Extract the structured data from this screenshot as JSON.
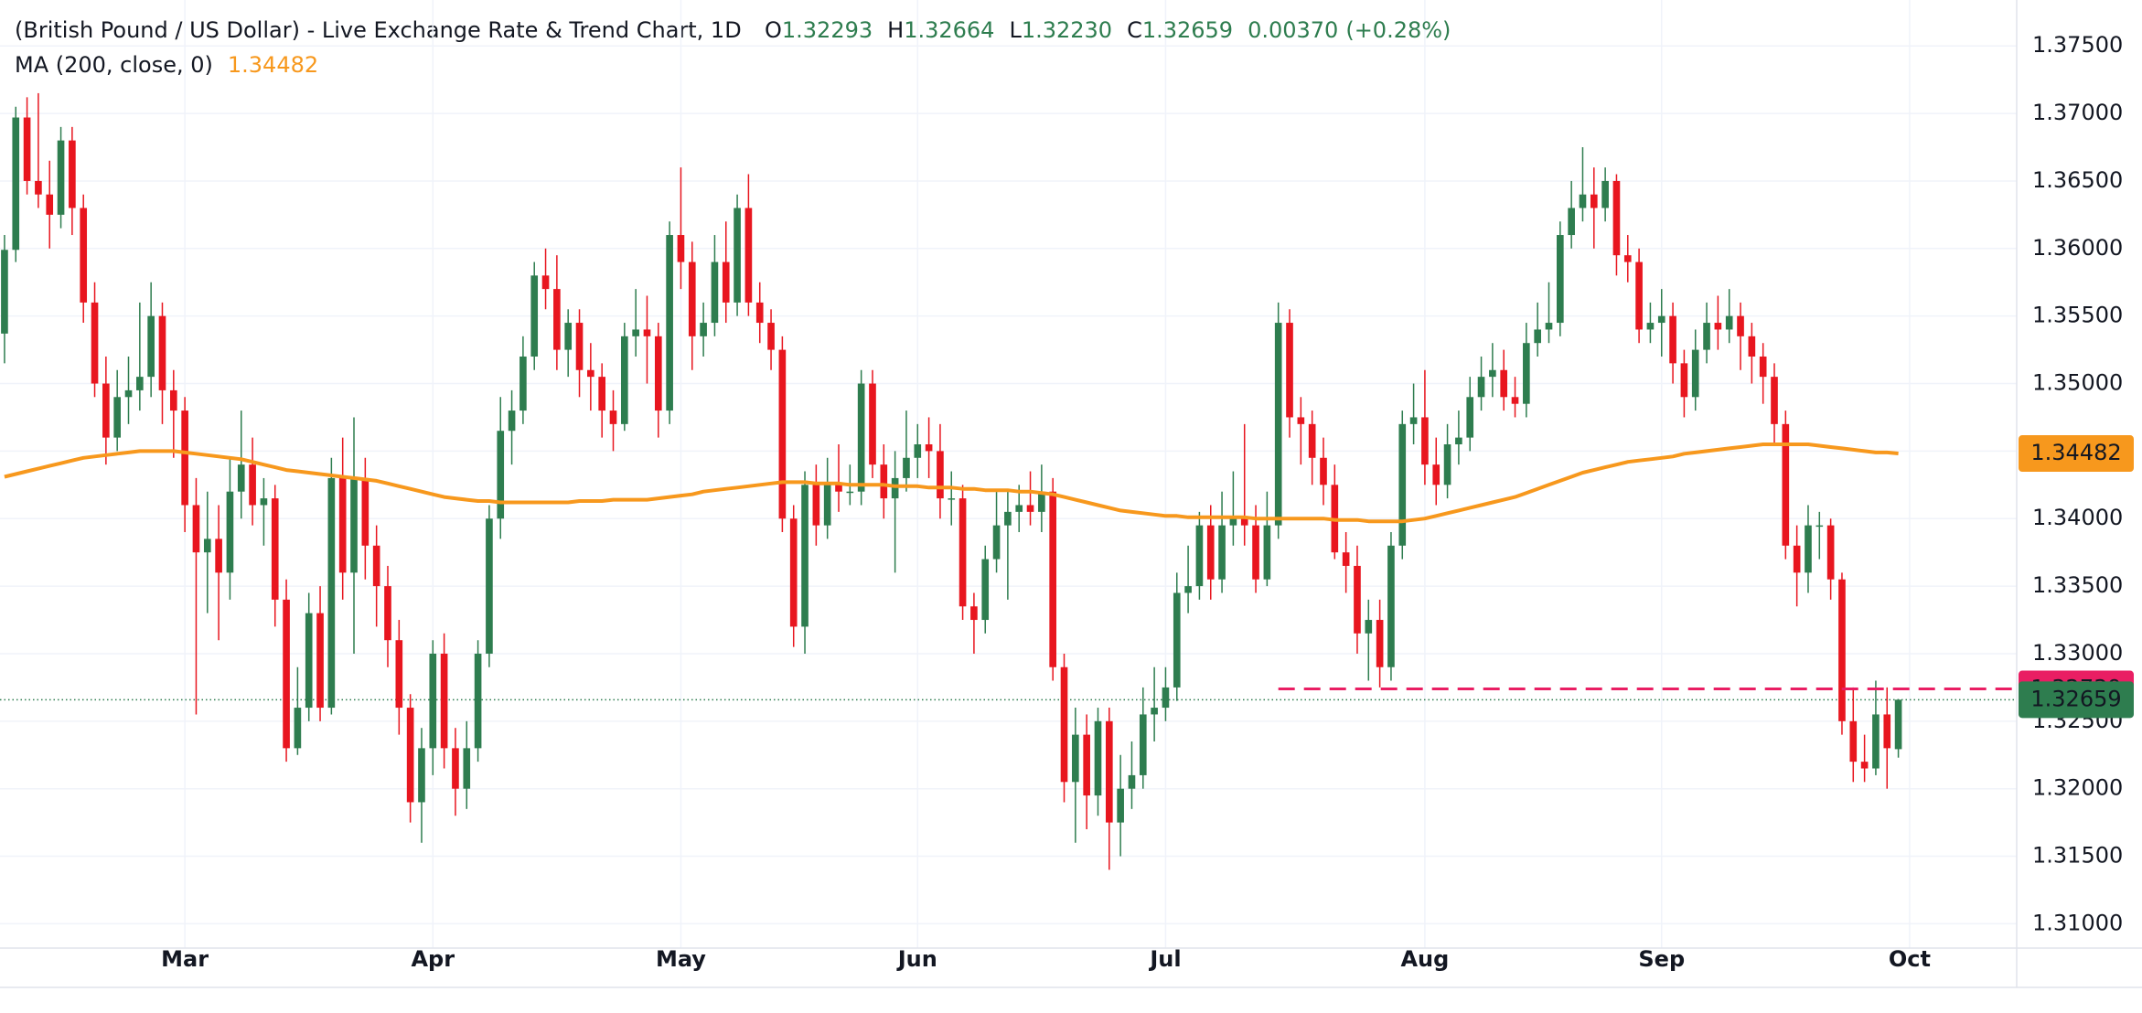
{
  "chart_data": {
    "type": "candlestick",
    "title": "(British Pound / US Dollar) - Live Exchange Rate & Trend Chart, 1D",
    "ohlc": [
      {
        "key": "O",
        "value": "1.32293"
      },
      {
        "key": "H",
        "value": "1.32664"
      },
      {
        "key": "L",
        "value": "1.32230"
      },
      {
        "key": "C",
        "value": "1.32659"
      }
    ],
    "change": "0.00370",
    "change_pct": "(+0.28%)",
    "up_color": "#2e7d4f",
    "down_color": "#e8161f",
    "ylim": [
      1.3082,
      1.3784
    ],
    "yticks": [
      {
        "value": 1.31,
        "label": "1.31000"
      },
      {
        "value": 1.315,
        "label": "1.31500"
      },
      {
        "value": 1.32,
        "label": "1.32000"
      },
      {
        "value": 1.325,
        "label": "1.32500"
      },
      {
        "value": 1.33,
        "label": "1.33000"
      },
      {
        "value": 1.335,
        "label": "1.33500"
      },
      {
        "value": 1.34,
        "label": "1.34000"
      },
      {
        "value": 1.345,
        "label": "1.34500"
      },
      {
        "value": 1.35,
        "label": "1.35000"
      },
      {
        "value": 1.355,
        "label": "1.35500"
      },
      {
        "value": 1.36,
        "label": "1.36000"
      },
      {
        "value": 1.365,
        "label": "1.36500"
      },
      {
        "value": 1.37,
        "label": "1.37000"
      },
      {
        "value": 1.375,
        "label": "1.37500"
      }
    ],
    "xlim": [
      -0.4,
      178.5
    ],
    "xticks": [
      {
        "value": 16,
        "label": "Mar"
      },
      {
        "value": 38,
        "label": "Apr"
      },
      {
        "value": 60,
        "label": "May"
      },
      {
        "value": 81,
        "label": "Jun"
      },
      {
        "value": 103,
        "label": "Jul"
      },
      {
        "value": 126,
        "label": "Aug"
      },
      {
        "value": 147,
        "label": "Sep"
      },
      {
        "value": 169,
        "label": "Oct"
      }
    ],
    "grid": true,
    "candles": [
      [
        1.3537,
        1.361,
        1.3515,
        1.3599
      ],
      [
        1.3599,
        1.3705,
        1.359,
        1.3697
      ],
      [
        1.3697,
        1.3712,
        1.364,
        1.365
      ],
      [
        1.365,
        1.3715,
        1.363,
        1.364
      ],
      [
        1.364,
        1.3665,
        1.36,
        1.3625
      ],
      [
        1.3625,
        1.369,
        1.3615,
        1.368
      ],
      [
        1.368,
        1.369,
        1.361,
        1.363
      ],
      [
        1.363,
        1.364,
        1.3545,
        1.356
      ],
      [
        1.356,
        1.3575,
        1.349,
        1.35
      ],
      [
        1.35,
        1.352,
        1.344,
        1.346
      ],
      [
        1.346,
        1.351,
        1.345,
        1.349
      ],
      [
        1.349,
        1.352,
        1.347,
        1.3495
      ],
      [
        1.3495,
        1.356,
        1.348,
        1.3505
      ],
      [
        1.3505,
        1.3575,
        1.349,
        1.355
      ],
      [
        1.355,
        1.356,
        1.347,
        1.3495
      ],
      [
        1.3495,
        1.351,
        1.3445,
        1.348
      ],
      [
        1.348,
        1.349,
        1.339,
        1.341
      ],
      [
        1.341,
        1.343,
        1.3255,
        1.3375
      ],
      [
        1.3375,
        1.342,
        1.333,
        1.3385
      ],
      [
        1.3385,
        1.341,
        1.331,
        1.336
      ],
      [
        1.336,
        1.3445,
        1.334,
        1.342
      ],
      [
        1.342,
        1.348,
        1.34,
        1.344
      ],
      [
        1.344,
        1.346,
        1.3395,
        1.341
      ],
      [
        1.341,
        1.343,
        1.338,
        1.3415
      ],
      [
        1.3415,
        1.3425,
        1.332,
        1.334
      ],
      [
        1.334,
        1.3355,
        1.322,
        1.323
      ],
      [
        1.323,
        1.329,
        1.3225,
        1.326
      ],
      [
        1.326,
        1.3345,
        1.325,
        1.333
      ],
      [
        1.333,
        1.335,
        1.325,
        1.326
      ],
      [
        1.326,
        1.3445,
        1.3255,
        1.343
      ],
      [
        1.343,
        1.346,
        1.334,
        1.336
      ],
      [
        1.336,
        1.3475,
        1.33,
        1.343
      ],
      [
        1.343,
        1.3445,
        1.3355,
        1.338
      ],
      [
        1.338,
        1.3395,
        1.332,
        1.335
      ],
      [
        1.335,
        1.3365,
        1.329,
        1.331
      ],
      [
        1.331,
        1.3325,
        1.324,
        1.326
      ],
      [
        1.326,
        1.327,
        1.3175,
        1.319
      ],
      [
        1.319,
        1.3245,
        1.316,
        1.323
      ],
      [
        1.323,
        1.331,
        1.321,
        1.33
      ],
      [
        1.33,
        1.3315,
        1.3215,
        1.323
      ],
      [
        1.323,
        1.3245,
        1.318,
        1.32
      ],
      [
        1.32,
        1.325,
        1.3185,
        1.323
      ],
      [
        1.323,
        1.331,
        1.322,
        1.33
      ],
      [
        1.33,
        1.341,
        1.329,
        1.34
      ],
      [
        1.34,
        1.349,
        1.3385,
        1.3465
      ],
      [
        1.3465,
        1.3495,
        1.344,
        1.348
      ],
      [
        1.348,
        1.3535,
        1.347,
        1.352
      ],
      [
        1.352,
        1.359,
        1.351,
        1.358
      ],
      [
        1.358,
        1.36,
        1.3555,
        1.357
      ],
      [
        1.357,
        1.3595,
        1.351,
        1.3525
      ],
      [
        1.3525,
        1.3555,
        1.3505,
        1.3545
      ],
      [
        1.3545,
        1.3555,
        1.349,
        1.351
      ],
      [
        1.351,
        1.353,
        1.348,
        1.3505
      ],
      [
        1.3505,
        1.3515,
        1.346,
        1.348
      ],
      [
        1.348,
        1.3495,
        1.345,
        1.347
      ],
      [
        1.347,
        1.3545,
        1.3465,
        1.3535
      ],
      [
        1.3535,
        1.357,
        1.352,
        1.354
      ],
      [
        1.354,
        1.3565,
        1.35,
        1.3535
      ],
      [
        1.3535,
        1.3545,
        1.346,
        1.348
      ],
      [
        1.348,
        1.362,
        1.347,
        1.361
      ],
      [
        1.361,
        1.366,
        1.357,
        1.359
      ],
      [
        1.359,
        1.3605,
        1.351,
        1.3535
      ],
      [
        1.3535,
        1.356,
        1.352,
        1.3545
      ],
      [
        1.3545,
        1.361,
        1.3535,
        1.359
      ],
      [
        1.359,
        1.362,
        1.3545,
        1.356
      ],
      [
        1.356,
        1.364,
        1.355,
        1.363
      ],
      [
        1.363,
        1.3655,
        1.355,
        1.356
      ],
      [
        1.356,
        1.3575,
        1.353,
        1.3545
      ],
      [
        1.3545,
        1.3555,
        1.351,
        1.3525
      ],
      [
        1.3525,
        1.3535,
        1.339,
        1.34
      ],
      [
        1.34,
        1.341,
        1.3305,
        1.332
      ],
      [
        1.332,
        1.3435,
        1.33,
        1.3425
      ],
      [
        1.3425,
        1.344,
        1.338,
        1.3395
      ],
      [
        1.3395,
        1.3445,
        1.3385,
        1.3425
      ],
      [
        1.3425,
        1.3455,
        1.3405,
        1.342
      ],
      [
        1.342,
        1.344,
        1.341,
        1.342
      ],
      [
        1.342,
        1.351,
        1.341,
        1.35
      ],
      [
        1.35,
        1.351,
        1.343,
        1.344
      ],
      [
        1.344,
        1.3455,
        1.34,
        1.3415
      ],
      [
        1.3415,
        1.345,
        1.336,
        1.343
      ],
      [
        1.343,
        1.348,
        1.342,
        1.3445
      ],
      [
        1.3445,
        1.347,
        1.343,
        1.3455
      ],
      [
        1.3455,
        1.3475,
        1.343,
        1.345
      ],
      [
        1.345,
        1.347,
        1.34,
        1.3415
      ],
      [
        1.3415,
        1.3435,
        1.3395,
        1.3415
      ],
      [
        1.3415,
        1.3425,
        1.3325,
        1.3335
      ],
      [
        1.3335,
        1.3345,
        1.33,
        1.3325
      ],
      [
        1.3325,
        1.338,
        1.3315,
        1.337
      ],
      [
        1.337,
        1.342,
        1.336,
        1.3395
      ],
      [
        1.3395,
        1.342,
        1.334,
        1.3405
      ],
      [
        1.3405,
        1.3425,
        1.339,
        1.341
      ],
      [
        1.341,
        1.3435,
        1.3395,
        1.3405
      ],
      [
        1.3405,
        1.344,
        1.339,
        1.342
      ],
      [
        1.342,
        1.343,
        1.328,
        1.329
      ],
      [
        1.329,
        1.33,
        1.319,
        1.3205
      ],
      [
        1.3205,
        1.326,
        1.316,
        1.324
      ],
      [
        1.324,
        1.3255,
        1.317,
        1.3195
      ],
      [
        1.3195,
        1.326,
        1.318,
        1.325
      ],
      [
        1.325,
        1.326,
        1.314,
        1.3175
      ],
      [
        1.3175,
        1.3225,
        1.315,
        1.32
      ],
      [
        1.32,
        1.3235,
        1.3185,
        1.321
      ],
      [
        1.321,
        1.3275,
        1.32,
        1.3255
      ],
      [
        1.3255,
        1.329,
        1.3235,
        1.326
      ],
      [
        1.326,
        1.329,
        1.325,
        1.3275
      ],
      [
        1.3275,
        1.336,
        1.3265,
        1.3345
      ],
      [
        1.3345,
        1.338,
        1.333,
        1.335
      ],
      [
        1.335,
        1.3405,
        1.334,
        1.3395
      ],
      [
        1.3395,
        1.341,
        1.334,
        1.3355
      ],
      [
        1.3355,
        1.342,
        1.3345,
        1.3395
      ],
      [
        1.3395,
        1.3435,
        1.338,
        1.34
      ],
      [
        1.34,
        1.347,
        1.338,
        1.3395
      ],
      [
        1.3395,
        1.341,
        1.3345,
        1.3355
      ],
      [
        1.3355,
        1.342,
        1.335,
        1.3395
      ],
      [
        1.3395,
        1.356,
        1.3385,
        1.3545
      ],
      [
        1.3545,
        1.3555,
        1.346,
        1.3475
      ],
      [
        1.3475,
        1.349,
        1.344,
        1.347
      ],
      [
        1.347,
        1.348,
        1.3425,
        1.3445
      ],
      [
        1.3445,
        1.346,
        1.341,
        1.3425
      ],
      [
        1.3425,
        1.344,
        1.337,
        1.3375
      ],
      [
        1.3375,
        1.339,
        1.3345,
        1.3365
      ],
      [
        1.3365,
        1.338,
        1.33,
        1.3315
      ],
      [
        1.3315,
        1.334,
        1.328,
        1.3325
      ],
      [
        1.3325,
        1.334,
        1.3275,
        1.329
      ],
      [
        1.329,
        1.339,
        1.328,
        1.338
      ],
      [
        1.338,
        1.348,
        1.337,
        1.347
      ],
      [
        1.347,
        1.35,
        1.3455,
        1.3475
      ],
      [
        1.3475,
        1.351,
        1.3425,
        1.344
      ],
      [
        1.344,
        1.346,
        1.341,
        1.3425
      ],
      [
        1.3425,
        1.347,
        1.3415,
        1.3455
      ],
      [
        1.3455,
        1.348,
        1.344,
        1.346
      ],
      [
        1.346,
        1.3505,
        1.345,
        1.349
      ],
      [
        1.349,
        1.352,
        1.348,
        1.3505
      ],
      [
        1.3505,
        1.353,
        1.349,
        1.351
      ],
      [
        1.351,
        1.3525,
        1.348,
        1.349
      ],
      [
        1.349,
        1.3505,
        1.3475,
        1.3485
      ],
      [
        1.3485,
        1.3545,
        1.3475,
        1.353
      ],
      [
        1.353,
        1.356,
        1.352,
        1.354
      ],
      [
        1.354,
        1.3575,
        1.353,
        1.3545
      ],
      [
        1.3545,
        1.362,
        1.3535,
        1.361
      ],
      [
        1.361,
        1.365,
        1.36,
        1.363
      ],
      [
        1.363,
        1.3675,
        1.362,
        1.364
      ],
      [
        1.364,
        1.366,
        1.36,
        1.363
      ],
      [
        1.363,
        1.366,
        1.362,
        1.365
      ],
      [
        1.365,
        1.3655,
        1.358,
        1.3595
      ],
      [
        1.3595,
        1.361,
        1.3575,
        1.359
      ],
      [
        1.359,
        1.36,
        1.353,
        1.354
      ],
      [
        1.354,
        1.356,
        1.353,
        1.3545
      ],
      [
        1.3545,
        1.357,
        1.352,
        1.355
      ],
      [
        1.355,
        1.356,
        1.35,
        1.3515
      ],
      [
        1.3515,
        1.3525,
        1.3475,
        1.349
      ],
      [
        1.349,
        1.354,
        1.348,
        1.3525
      ],
      [
        1.3525,
        1.356,
        1.3515,
        1.3545
      ],
      [
        1.3545,
        1.3565,
        1.3525,
        1.354
      ],
      [
        1.354,
        1.357,
        1.353,
        1.355
      ],
      [
        1.355,
        1.356,
        1.351,
        1.3535
      ],
      [
        1.3535,
        1.3545,
        1.35,
        1.352
      ],
      [
        1.352,
        1.353,
        1.3485,
        1.3505
      ],
      [
        1.3505,
        1.3515,
        1.3455,
        1.347
      ],
      [
        1.347,
        1.348,
        1.337,
        1.338
      ],
      [
        1.338,
        1.3395,
        1.3335,
        1.336
      ],
      [
        1.336,
        1.341,
        1.3345,
        1.3395
      ],
      [
        1.3395,
        1.3405,
        1.337,
        1.3395
      ],
      [
        1.3395,
        1.34,
        1.334,
        1.3355
      ],
      [
        1.3355,
        1.336,
        1.324,
        1.325
      ],
      [
        1.325,
        1.3275,
        1.3205,
        1.322
      ],
      [
        1.322,
        1.324,
        1.3205,
        1.3215
      ],
      [
        1.3215,
        1.328,
        1.321,
        1.3255
      ],
      [
        1.3255,
        1.3275,
        1.32,
        1.323
      ],
      [
        1.32293,
        1.32664,
        1.3223,
        1.32659
      ]
    ],
    "ma": {
      "name": "MA (200, close, 0)",
      "value_label": "1.34482",
      "color": "#f7981d",
      "values": [
        1.3431,
        1.3433,
        1.3435,
        1.3437,
        1.3439,
        1.3441,
        1.3443,
        1.3445,
        1.3446,
        1.3447,
        1.3448,
        1.3449,
        1.345,
        1.345,
        1.345,
        1.345,
        1.3449,
        1.3448,
        1.3447,
        1.3446,
        1.3445,
        1.3444,
        1.3442,
        1.344,
        1.3438,
        1.3436,
        1.3435,
        1.3434,
        1.3433,
        1.3432,
        1.3431,
        1.343,
        1.3429,
        1.3428,
        1.3426,
        1.3424,
        1.3422,
        1.342,
        1.3418,
        1.3416,
        1.3415,
        1.3414,
        1.3413,
        1.3413,
        1.3412,
        1.3412,
        1.3412,
        1.3412,
        1.3412,
        1.3412,
        1.3412,
        1.3413,
        1.3413,
        1.3413,
        1.3414,
        1.3414,
        1.3414,
        1.3414,
        1.3415,
        1.3416,
        1.3417,
        1.3418,
        1.342,
        1.3421,
        1.3422,
        1.3423,
        1.3424,
        1.3425,
        1.3426,
        1.3427,
        1.3427,
        1.3427,
        1.3426,
        1.3426,
        1.3426,
        1.3425,
        1.3425,
        1.3425,
        1.3425,
        1.3424,
        1.3424,
        1.3424,
        1.3423,
        1.3423,
        1.3423,
        1.3422,
        1.3422,
        1.3421,
        1.3421,
        1.3421,
        1.342,
        1.342,
        1.3419,
        1.3418,
        1.3416,
        1.3414,
        1.3412,
        1.341,
        1.3408,
        1.3406,
        1.3405,
        1.3404,
        1.3403,
        1.3402,
        1.3402,
        1.3401,
        1.3401,
        1.3401,
        1.3401,
        1.3401,
        1.3401,
        1.34,
        1.34,
        1.34,
        1.34,
        1.34,
        1.34,
        1.34,
        1.3399,
        1.3399,
        1.3399,
        1.3398,
        1.3398,
        1.3398,
        1.3398,
        1.3399,
        1.34,
        1.3402,
        1.3404,
        1.3406,
        1.3408,
        1.341,
        1.3412,
        1.3414,
        1.3416,
        1.3419,
        1.3422,
        1.3425,
        1.3428,
        1.3431,
        1.3434,
        1.3436,
        1.3438,
        1.344,
        1.3442,
        1.3443,
        1.3444,
        1.3445,
        1.3446,
        1.3448,
        1.3449,
        1.345,
        1.3451,
        1.3452,
        1.3453,
        1.3454,
        1.3455,
        1.3455,
        1.3455,
        1.3455,
        1.3455,
        1.3454,
        1.3453,
        1.3452,
        1.3451,
        1.345,
        1.3449,
        1.3449,
        1.34482
      ]
    },
    "level": {
      "value": 1.32739,
      "label": "1.32739",
      "color": "#e91e63",
      "from": 113
    },
    "last": {
      "value": 1.32659,
      "label": "1.32659"
    }
  }
}
